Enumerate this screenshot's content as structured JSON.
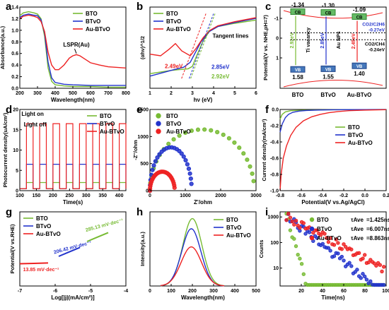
{
  "series_colors": {
    "BTO": "#77bb33",
    "BTvO": "#2233cc",
    "Au-BTvO": "#ee2222"
  },
  "chart_data": [
    {
      "panel": "a",
      "type": "line",
      "xlabel": "Wavelength(nm)",
      "ylabel": "Absorbance(a.u.)",
      "xlim": [
        200,
        800
      ],
      "ylim": [
        0,
        1.4
      ],
      "xticks": [
        "200",
        "300",
        "400",
        "500",
        "600",
        "700",
        "800"
      ],
      "yticks": [
        "0.0",
        "0.2",
        "0.4",
        "0.6",
        "0.8",
        "1.0",
        "1.2",
        "1.4"
      ],
      "legend": [
        "BTO",
        "BTvO",
        "Au-BTvO"
      ],
      "annotation": "LSPR(Au)",
      "series": [
        {
          "name": "BTO",
          "x": [
            200,
            220,
            250,
            280,
            300,
            320,
            340,
            360,
            380,
            400,
            450,
            500,
            600,
            700,
            800
          ],
          "y": [
            1.25,
            1.3,
            1.32,
            1.3,
            1.28,
            1.2,
            0.9,
            0.35,
            0.12,
            0.06,
            0.04,
            0.03,
            0.03,
            0.02,
            0.02
          ]
        },
        {
          "name": "BTvO",
          "x": [
            200,
            220,
            250,
            280,
            300,
            320,
            340,
            360,
            380,
            400,
            450,
            500,
            600,
            700,
            800
          ],
          "y": [
            1.22,
            1.26,
            1.28,
            1.26,
            1.25,
            1.18,
            0.95,
            0.45,
            0.18,
            0.1,
            0.07,
            0.06,
            0.05,
            0.05,
            0.05
          ]
        },
        {
          "name": "Au-BTvO",
          "x": [
            200,
            220,
            250,
            280,
            300,
            320,
            340,
            360,
            380,
            400,
            420,
            450,
            480,
            500,
            520,
            540,
            560,
            580,
            600,
            650,
            700,
            750,
            800
          ],
          "y": [
            1.2,
            1.24,
            1.26,
            1.24,
            1.22,
            1.15,
            0.98,
            0.62,
            0.4,
            0.32,
            0.32,
            0.4,
            0.52,
            0.56,
            0.58,
            0.56,
            0.52,
            0.48,
            0.44,
            0.4,
            0.37,
            0.36,
            0.35
          ]
        }
      ]
    },
    {
      "panel": "b",
      "type": "line",
      "xlabel": "hν (eV)",
      "ylabel": "(αhν)^1/2",
      "xlim": [
        1,
        6
      ],
      "ylim": [
        0,
        1
      ],
      "xticks": [
        "1",
        "2",
        "3",
        "4",
        "5",
        "6"
      ],
      "legend": [
        "BTO",
        "BTvO",
        "Au-BTvO"
      ],
      "annotations": [
        "Tangent lines",
        "2.49eV",
        "2.85eV",
        "2.92eV"
      ],
      "series": [
        {
          "name": "BTO",
          "x": [
            1,
            2,
            2.8,
            3.0,
            3.2,
            3.5,
            3.8,
            4.2,
            5,
            6
          ],
          "y": [
            0.18,
            0.22,
            0.24,
            0.27,
            0.4,
            0.58,
            0.7,
            0.76,
            0.8,
            0.84
          ]
        },
        {
          "name": "BTvO",
          "x": [
            1,
            2,
            2.6,
            2.9,
            3.1,
            3.4,
            3.8,
            4.2,
            5,
            6
          ],
          "y": [
            0.15,
            0.22,
            0.26,
            0.32,
            0.42,
            0.57,
            0.7,
            0.76,
            0.81,
            0.86
          ]
        },
        {
          "name": "Au-BTvO",
          "x": [
            1,
            1.5,
            1.9,
            2.2,
            2.5,
            2.9,
            3.2,
            3.5,
            3.8,
            4.2,
            5,
            6
          ],
          "y": [
            0.42,
            0.4,
            0.48,
            0.55,
            0.46,
            0.4,
            0.5,
            0.62,
            0.71,
            0.77,
            0.82,
            0.87
          ]
        }
      ]
    },
    {
      "panel": "c",
      "type": "diagram",
      "ylabel": "Potential(V vs. NHE,pH=7)",
      "materials": [
        "BTO",
        "BTvO",
        "Au-BTvO"
      ],
      "cb": [
        "-1.34",
        "-1.30",
        "-1.09"
      ],
      "vb": [
        "1.58",
        "1.55",
        "1.40"
      ],
      "gaps": [
        "2.92eV",
        "2.85eV",
        "2.49eV"
      ],
      "cb_label": "CB",
      "vb_label": "VB",
      "labels": [
        "Ti vacancy",
        "Au NPs"
      ],
      "redox": [
        "CO2/C2H6",
        "-0.27eV",
        "CO2/CH4",
        "-0.24eV"
      ],
      "yticks": [
        "-1",
        "0",
        "1"
      ]
    },
    {
      "panel": "d",
      "type": "line",
      "xlabel": "Time(s)",
      "ylabel": "Photocurrent density(uA/cm²)",
      "xlim": [
        100,
        420
      ],
      "ylim": [
        0,
        20
      ],
      "xticks": [
        "100",
        "150",
        "200",
        "250",
        "300",
        "350",
        "400"
      ],
      "yticks": [
        "0",
        "5",
        "10",
        "15",
        "20"
      ],
      "legend": [
        "BTO",
        "BTvO",
        "Au-BTvO"
      ],
      "annotations": [
        "Light on",
        "Light off"
      ],
      "on_periods": [
        [
          120,
          140
        ],
        [
          160,
          180
        ],
        [
          200,
          220
        ],
        [
          240,
          260
        ],
        [
          280,
          300
        ],
        [
          320,
          340
        ],
        [
          360,
          380
        ],
        [
          400,
          420
        ]
      ],
      "series": [
        {
          "name": "BTO",
          "off_level": 0.5,
          "on_level": 2.0
        },
        {
          "name": "BTvO",
          "off_level": 0.5,
          "on_level": 6.5
        },
        {
          "name": "Au-BTvO",
          "off_level": 0.5,
          "on_level": 16.5
        }
      ]
    },
    {
      "panel": "e",
      "type": "scatter",
      "xlabel": "Z'/ohm",
      "ylabel": "-Z''/ohm",
      "xlim": [
        0,
        3000
      ],
      "ylim": [
        0,
        1500
      ],
      "xticks": [
        "0",
        "1000",
        "2000",
        "3000"
      ],
      "yticks": [
        "0",
        "500",
        "1000",
        "1500"
      ],
      "legend": [
        "BTO",
        "BTvO",
        "Au-BTvO"
      ],
      "series": [
        {
          "name": "BTO",
          "arc_end": 2950,
          "peak": 1130
        },
        {
          "name": "BTvO",
          "arc_end": 1180,
          "peak": 800
        },
        {
          "name": "Au-BTvO",
          "arc_end": 700,
          "peak": 350
        }
      ]
    },
    {
      "panel": "f",
      "type": "line",
      "xlabel": "Potential(V vs.Ag/AgCl)",
      "ylabel": "Current density(mA/cm²)",
      "xlim": [
        -0.8,
        0.2
      ],
      "ylim": [
        -1.0,
        0.0
      ],
      "xticks": [
        "-0.8",
        "-0.6",
        "-0.4",
        "-0.2",
        "0.0",
        "0.2"
      ],
      "yticks": [
        "0.0",
        "-0.2",
        "-0.4",
        "-0.6",
        "-0.8",
        "-1.0"
      ],
      "legend": [
        "BTO",
        "BTvO",
        "Au-BTvO"
      ],
      "series": [
        {
          "name": "BTO",
          "x": [
            -0.8,
            -0.78,
            -0.75,
            -0.7,
            -0.6,
            -0.4,
            -0.2,
            0.0,
            0.2
          ],
          "y": [
            -0.12,
            -0.06,
            -0.03,
            -0.015,
            -0.01,
            -0.005,
            -0.003,
            -0.002,
            -0.001
          ]
        },
        {
          "name": "BTvO",
          "x": [
            -0.8,
            -0.78,
            -0.75,
            -0.72,
            -0.68,
            -0.62,
            -0.55,
            -0.45,
            -0.35,
            -0.2,
            0.0,
            0.2
          ],
          "y": [
            -0.28,
            -0.18,
            -0.1,
            -0.06,
            -0.035,
            -0.02,
            -0.012,
            -0.008,
            -0.005,
            -0.003,
            -0.002,
            -0.001
          ]
        },
        {
          "name": "Au-BTvO",
          "x": [
            -0.8,
            -0.79,
            -0.77,
            -0.74,
            -0.7,
            -0.65,
            -0.58,
            -0.5,
            -0.42,
            -0.34,
            -0.25,
            -0.15,
            0.0,
            0.2
          ],
          "y": [
            -1.0,
            -0.8,
            -0.6,
            -0.45,
            -0.32,
            -0.22,
            -0.14,
            -0.09,
            -0.06,
            -0.04,
            -0.025,
            -0.015,
            -0.008,
            -0.003
          ]
        }
      ]
    },
    {
      "panel": "g",
      "type": "line",
      "xlabel": "Log[|j|(mA/cm²)]",
      "ylabel": "Potential(V vs.RHE)",
      "xlim": [
        -7,
        -4
      ],
      "xticks": [
        "-7",
        "-6",
        "-5",
        "-4"
      ],
      "legend": [
        "BTO",
        "BTvO",
        "Au-BTvO"
      ],
      "annotations": [
        "285.13 mV·dec⁻¹",
        "206.42 mV·dec⁻¹",
        "13.85 mV·dec⁻¹"
      ],
      "series": [
        {
          "name": "BTO",
          "x": [
            -5.1,
            -4.8,
            -4.5
          ],
          "y": [
            0.6,
            0.66,
            0.72
          ]
        },
        {
          "name": "BTvO",
          "x": [
            -5.9,
            -5.6,
            -5.3
          ],
          "y": [
            0.4,
            0.46,
            0.52
          ]
        },
        {
          "name": "Au-BTvO",
          "x": [
            -7.0,
            -6.6,
            -6.2
          ],
          "y": [
            0.3,
            0.305,
            0.31
          ]
        }
      ]
    },
    {
      "panel": "h",
      "type": "line",
      "xlabel": "Wavelength(nm)",
      "ylabel": "Intensity(a.u.)",
      "xlim": [
        0,
        500
      ],
      "xticks": [
        "0",
        "100",
        "200",
        "300",
        "400",
        "500"
      ],
      "legend": [
        "BTO",
        "BTvO",
        "Au-BTvO"
      ],
      "series": [
        {
          "name": "BTO",
          "center": 200,
          "peak": 1.0,
          "width": 45
        },
        {
          "name": "BTvO",
          "center": 195,
          "peak": 0.85,
          "width": 45
        },
        {
          "name": "Au-BTvO",
          "center": 195,
          "peak": 0.58,
          "width": 48
        }
      ]
    },
    {
      "panel": "i",
      "type": "scatter",
      "xlabel": "Time(ns)",
      "ylabel": "Counts",
      "xlim": [
        0,
        100
      ],
      "xticks": [
        "20",
        "40",
        "60",
        "80",
        "100"
      ],
      "yticks": [
        "10",
        "100",
        "1000"
      ],
      "legend": [
        "BTO",
        "BTvO",
        "Au-BTvO"
      ],
      "tau_label": "τAve",
      "tau_values": [
        "=1.425ns",
        "=6.007ns",
        "=8.863ns"
      ],
      "series": [
        {
          "name": "BTO",
          "tau": 1.425
        },
        {
          "name": "BTvO",
          "tau": 6.007
        },
        {
          "name": "Au-BTvO",
          "tau": 8.863
        }
      ]
    }
  ]
}
